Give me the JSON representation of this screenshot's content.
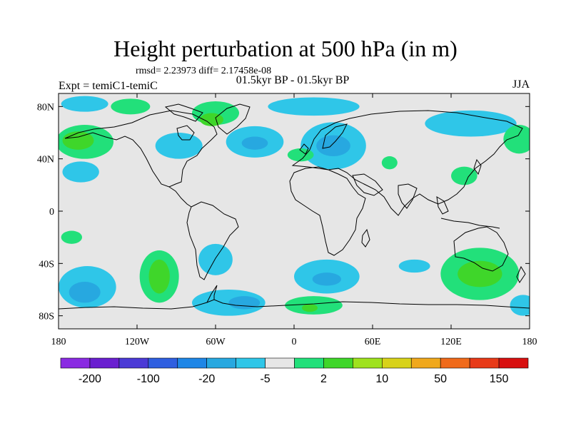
{
  "chart_data": {
    "type": "heatmap",
    "title": "Height perturbation at 500 hPa (in m)",
    "subtitle_stats": "rmsd= 2.23973 diff= 2.17458e-08",
    "subtitle_period": "01.5kyr BP - 01.5kyr BP",
    "left_string": "Expt = temiC1-temiC",
    "right_string": "JJA",
    "x_ticks": [
      {
        "value": -180,
        "label": "180"
      },
      {
        "value": -120,
        "label": "120W"
      },
      {
        "value": -60,
        "label": "60W"
      },
      {
        "value": 0,
        "label": "0"
      },
      {
        "value": 60,
        "label": "60E"
      },
      {
        "value": 120,
        "label": "120E"
      },
      {
        "value": 180,
        "label": "180"
      }
    ],
    "y_ticks": [
      {
        "value": 80,
        "label": "80N"
      },
      {
        "value": 40,
        "label": "40N"
      },
      {
        "value": 0,
        "label": "0"
      },
      {
        "value": -40,
        "label": "40S"
      },
      {
        "value": -80,
        "label": "80S"
      }
    ],
    "xlim": [
      -180,
      180
    ],
    "ylim": [
      -90,
      90
    ],
    "colorbar": {
      "colors": [
        "#8a2be2",
        "#6a1fd0",
        "#4b3ad6",
        "#2f5fe0",
        "#1e86e6",
        "#27a8e0",
        "#2fc6e8",
        "#e6e6e6",
        "#22e07a",
        "#3fd62a",
        "#9fe21e",
        "#d8d21a",
        "#f0a81c",
        "#f06a1a",
        "#e83a18",
        "#d81010"
      ],
      "labels": [
        {
          "after_box": 1,
          "text": "-200"
        },
        {
          "after_box": 3,
          "text": "-100"
        },
        {
          "after_box": 5,
          "text": "-20"
        },
        {
          "after_box": 7,
          "text": "-5"
        },
        {
          "after_box": 9,
          "text": "2"
        },
        {
          "after_box": 11,
          "text": "10"
        },
        {
          "after_box": 13,
          "text": "50"
        },
        {
          "after_box": 15,
          "text": "150"
        }
      ]
    },
    "anomaly_regions": [
      {
        "lon": -160,
        "lat": 82,
        "rlon": 18,
        "rlat": 6,
        "level": "neg-light"
      },
      {
        "lon": -125,
        "lat": 80,
        "rlon": 15,
        "rlat": 6,
        "level": "pos-light"
      },
      {
        "lon": -60,
        "lat": 75,
        "rlon": 18,
        "rlat": 9,
        "level": "pos-light"
      },
      {
        "lon": -63,
        "lat": 70,
        "rlon": 9,
        "rlat": 5,
        "level": "pos-mid"
      },
      {
        "lon": -160,
        "lat": 53,
        "rlon": 22,
        "rlat": 13,
        "level": "pos-light"
      },
      {
        "lon": -165,
        "lat": 54,
        "rlon": 12,
        "rlat": 7,
        "level": "pos-mid"
      },
      {
        "lon": -163,
        "lat": 30,
        "rlon": 14,
        "rlat": 8,
        "level": "neg-light"
      },
      {
        "lon": -88,
        "lat": 50,
        "rlon": 18,
        "rlat": 10,
        "level": "neg-light"
      },
      {
        "lon": -30,
        "lat": 53,
        "rlon": 22,
        "rlat": 12,
        "level": "neg-light"
      },
      {
        "lon": -30,
        "lat": 52,
        "rlon": 10,
        "rlat": 5,
        "level": "neg-mid"
      },
      {
        "lon": 15,
        "lat": 80,
        "rlon": 35,
        "rlat": 7,
        "level": "neg-light"
      },
      {
        "lon": 30,
        "lat": 50,
        "rlon": 25,
        "rlat": 18,
        "level": "neg-light"
      },
      {
        "lon": 30,
        "lat": 50,
        "rlon": 13,
        "rlat": 8,
        "level": "neg-mid"
      },
      {
        "lon": 5,
        "lat": 43,
        "rlon": 10,
        "rlat": 5,
        "level": "pos-light"
      },
      {
        "lon": 73,
        "lat": 37,
        "rlon": 6,
        "rlat": 5,
        "level": "pos-light"
      },
      {
        "lon": 135,
        "lat": 67,
        "rlon": 35,
        "rlat": 10,
        "level": "neg-light"
      },
      {
        "lon": 172,
        "lat": 55,
        "rlon": 12,
        "rlat": 11,
        "level": "pos-light"
      },
      {
        "lon": 130,
        "lat": 27,
        "rlon": 10,
        "rlat": 7,
        "level": "pos-light"
      },
      {
        "lon": -170,
        "lat": -20,
        "rlon": 8,
        "rlat": 5,
        "level": "pos-light"
      },
      {
        "lon": -158,
        "lat": -58,
        "rlon": 22,
        "rlat": 16,
        "level": "neg-light"
      },
      {
        "lon": -160,
        "lat": -62,
        "rlon": 12,
        "rlat": 8,
        "level": "neg-mid"
      },
      {
        "lon": -103,
        "lat": -50,
        "rlon": 15,
        "rlat": 20,
        "level": "pos-light"
      },
      {
        "lon": -103,
        "lat": -50,
        "rlon": 8,
        "rlat": 13,
        "level": "pos-mid"
      },
      {
        "lon": -60,
        "lat": -37,
        "rlon": 13,
        "rlat": 12,
        "level": "neg-light"
      },
      {
        "lon": -50,
        "lat": -70,
        "rlon": 28,
        "rlat": 10,
        "level": "neg-light"
      },
      {
        "lon": -38,
        "lat": -70,
        "rlon": 12,
        "rlat": 5,
        "level": "neg-mid"
      },
      {
        "lon": 15,
        "lat": -72,
        "rlon": 22,
        "rlat": 7,
        "level": "pos-light"
      },
      {
        "lon": 12,
        "lat": -74,
        "rlon": 6,
        "rlat": 3,
        "level": "pos-mid"
      },
      {
        "lon": 25,
        "lat": -50,
        "rlon": 25,
        "rlat": 13,
        "level": "neg-light"
      },
      {
        "lon": 25,
        "lat": -52,
        "rlon": 11,
        "rlat": 5,
        "level": "neg-mid"
      },
      {
        "lon": 92,
        "lat": -42,
        "rlon": 12,
        "rlat": 5,
        "level": "neg-light"
      },
      {
        "lon": 142,
        "lat": -48,
        "rlon": 30,
        "rlat": 20,
        "level": "pos-light"
      },
      {
        "lon": 142,
        "lat": -48,
        "rlon": 17,
        "rlat": 10,
        "level": "pos-mid"
      },
      {
        "lon": 175,
        "lat": -72,
        "rlon": 10,
        "rlat": 8,
        "level": "neg-light"
      }
    ]
  }
}
